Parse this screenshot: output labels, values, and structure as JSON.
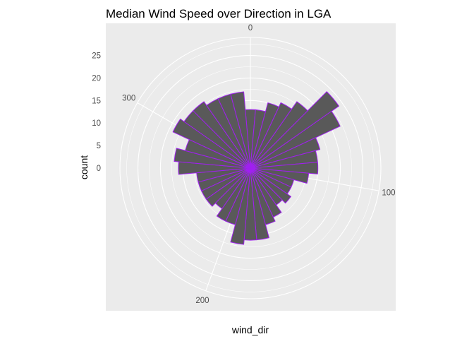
{
  "chart_data": {
    "type": "bar",
    "coord": "polar",
    "title": "Median Wind Speed over Direction in LGA",
    "xlabel": "wind_dir",
    "ylabel": "count",
    "x_ticks": [
      0,
      100,
      200,
      300
    ],
    "y_ticks": [
      0,
      5,
      10,
      15,
      20,
      25
    ],
    "x_range": [
      0,
      360
    ],
    "ylim": [
      0,
      29
    ],
    "bar_width_deg": 10,
    "grid": true,
    "colors": {
      "panel": "#ebebeb",
      "grid": "#ffffff",
      "bar_fill": "#595959",
      "bar_outline": "#a020f0"
    },
    "categories": [
      0,
      10,
      20,
      30,
      40,
      50,
      60,
      70,
      80,
      90,
      100,
      110,
      120,
      130,
      140,
      150,
      160,
      170,
      180,
      190,
      200,
      210,
      220,
      230,
      240,
      250,
      260,
      270,
      280,
      290,
      300,
      310,
      320,
      330,
      340,
      350
    ],
    "values": [
      13,
      13,
      15,
      16,
      18,
      24,
      22,
      16,
      15,
      15,
      13,
      10,
      10,
      11,
      10,
      12,
      13,
      16,
      16,
      17,
      13,
      13,
      11,
      12,
      12,
      12,
      12,
      16,
      17,
      15,
      19,
      18,
      18,
      17,
      17,
      17
    ]
  }
}
